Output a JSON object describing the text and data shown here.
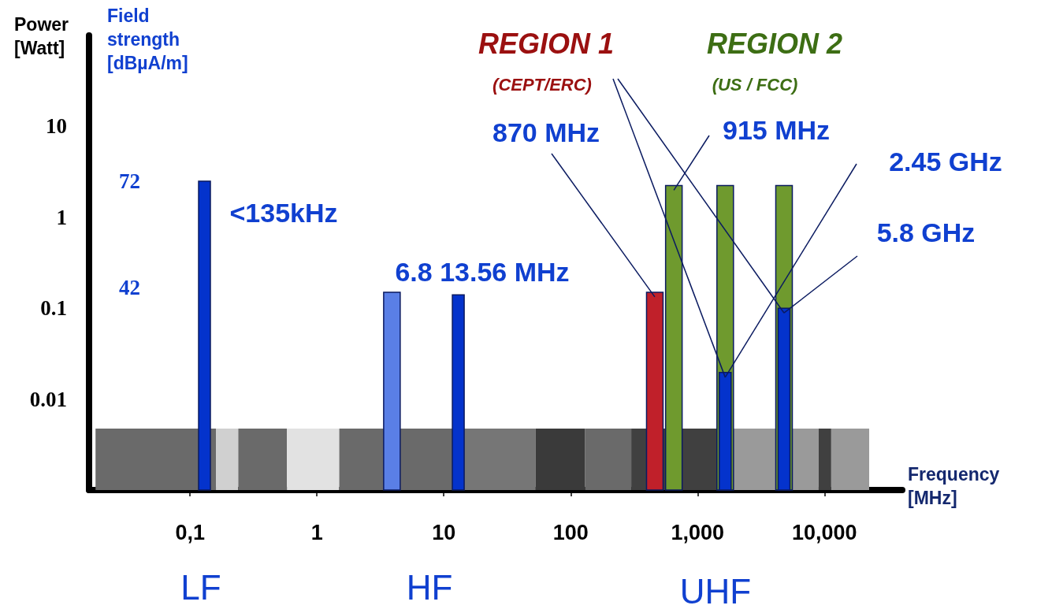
{
  "chart_data": {
    "type": "bar",
    "xlabel": "Frequency [MHz]",
    "ylabel": "Power [Watt]",
    "y2label": "Field strength [dBµA/m]",
    "log": "xy",
    "xlim": [
      0.016,
      41000
    ],
    "xticks": [
      {
        "value": 0.1,
        "label": "0,1"
      },
      1,
      10,
      100,
      {
        "value": 1000,
        "label": "1,000"
      },
      {
        "value": 10000,
        "label": "10,000"
      }
    ],
    "ylim": [
      0.001,
      100
    ],
    "yticks": [
      10,
      1,
      0.1,
      0.01
    ],
    "y2lim": [
      -15,
      113
    ],
    "y2ticks": [
      72,
      42
    ],
    "series": [
      {
        "color": "#6f9a2e",
        "x": [
          650,
          1650,
          4800
        ],
        "values": [
          2.24,
          2.24,
          2.24
        ]
      },
      {
        "color": "#5a7fe6",
        "x": [
          3.9
        ],
        "values": [
          0.15
        ]
      },
      {
        "color": "#c0202a",
        "x": [
          460
        ],
        "values": [
          0.15
        ]
      },
      {
        "color": "#0433cc",
        "x": [
          0.13,
          13,
          1650,
          4800
        ],
        "values": [
          2.5,
          0.14,
          0.0196,
          0.1
        ]
      }
    ],
    "bands": [
      {
        "axis": "x",
        "from": 0.018,
        "to": 0.16,
        "color": "#6a6a6a"
      },
      {
        "axis": "x",
        "from": 0.16,
        "to": 0.24,
        "color": "#d0d0d0"
      },
      {
        "axis": "x",
        "from": 0.24,
        "to": 0.58,
        "color": "#6a6a6a"
      },
      {
        "axis": "x",
        "from": 0.58,
        "to": 1.5,
        "color": "#e2e2e2"
      },
      {
        "axis": "x",
        "from": 1.5,
        "to": 14,
        "color": "#6a6a6a"
      },
      {
        "axis": "x",
        "from": 14,
        "to": 53,
        "color": "#767676"
      },
      {
        "axis": "x",
        "from": 53,
        "to": 130,
        "color": "#3a3a3a"
      },
      {
        "axis": "x",
        "from": 130,
        "to": 300,
        "color": "#6a6a6a"
      },
      {
        "axis": "x",
        "from": 300,
        "to": 1750,
        "color": "#404040"
      },
      {
        "axis": "x",
        "from": 1750,
        "to": 9000,
        "color": "#9a9a9a"
      },
      {
        "axis": "x",
        "from": 9000,
        "to": 11300,
        "color": "#404040"
      },
      {
        "axis": "x",
        "from": 11300,
        "to": 22500,
        "color": "#9a9a9a"
      }
    ],
    "annotations": [
      {
        "text": "<135kHz",
        "x": 0.13,
        "y": 2.5
      },
      "6.8 13.56 MHz",
      {
        "text": "870 MHz",
        "x": 460,
        "y": 0.15
      },
      {
        "text": "915 MHz",
        "x": 650,
        "y": 2.24
      },
      {
        "text": "2.45 GHz",
        "x": 1650,
        "y": 0.0196
      },
      {
        "text": "5.8 GHz",
        "x": 4800,
        "y": 0.1
      },
      {
        "text": "REGION 1",
        "x": 4800,
        "y": 0.1
      },
      {
        "text": "(CEPT/ERC)",
        "x": 1650,
        "y": 0.0196
      },
      "REGION 2",
      "(US / FCC)",
      "LF",
      "HF",
      "UHF"
    ]
  }
}
